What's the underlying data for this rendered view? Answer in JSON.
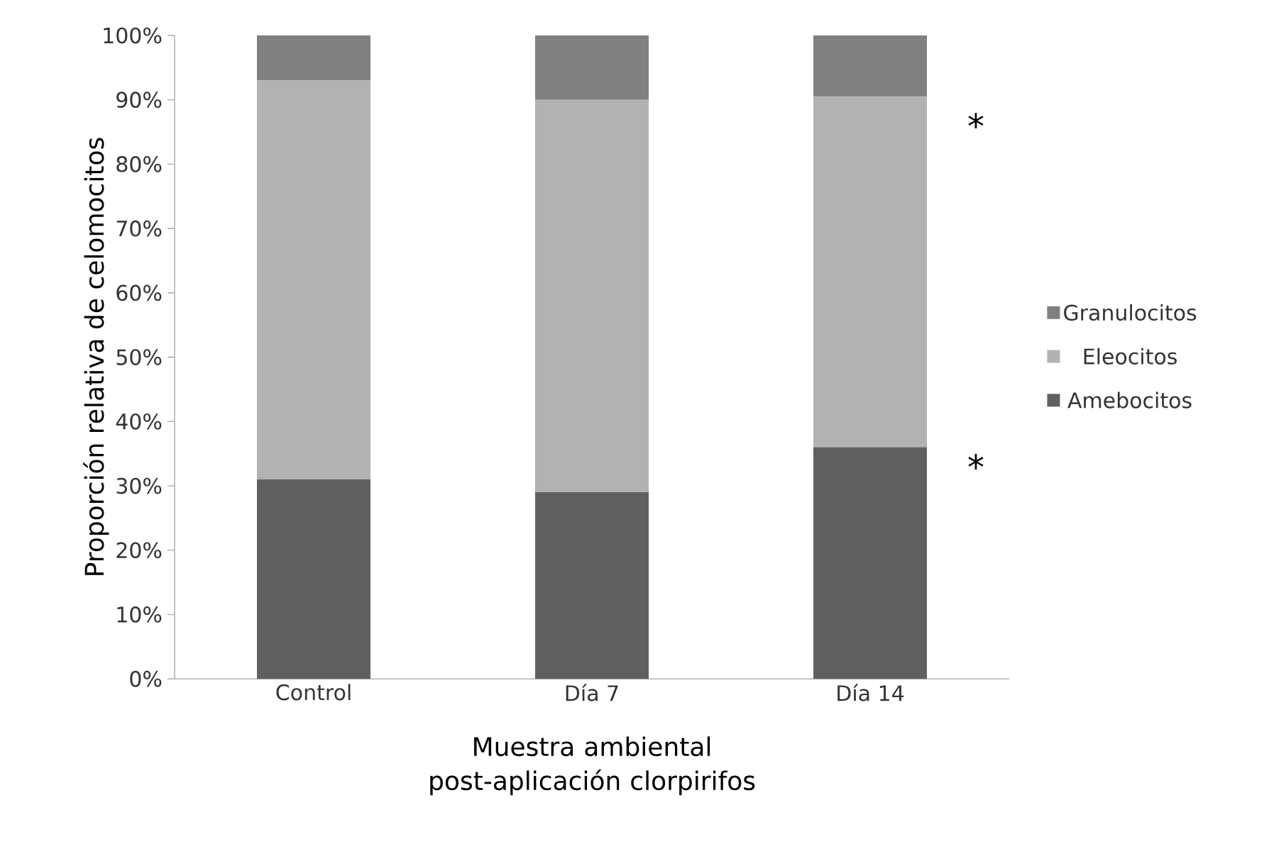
{
  "chart_data": {
    "type": "bar",
    "stacked": true,
    "categories": [
      "Control",
      "Día 7",
      "Día 14"
    ],
    "series": [
      {
        "name": "Amebocitos",
        "color": "#606060",
        "values": [
          31,
          29,
          36
        ]
      },
      {
        "name": "Eleocitos",
        "color": "#b2b2b2",
        "values": [
          62,
          61,
          54.5
        ]
      },
      {
        "name": "Granulocitos",
        "color": "#808080",
        "values": [
          7,
          10,
          9.5
        ]
      }
    ],
    "ylim": [
      0,
      100
    ],
    "yticks": [
      {
        "value": 0,
        "label": "0%"
      },
      {
        "value": 10,
        "label": "10%"
      },
      {
        "value": 20,
        "label": "20%"
      },
      {
        "value": 30,
        "label": "30%"
      },
      {
        "value": 40,
        "label": "40%"
      },
      {
        "value": 50,
        "label": "50%"
      },
      {
        "value": 60,
        "label": "60%"
      },
      {
        "value": 70,
        "label": "70%"
      },
      {
        "value": 80,
        "label": "80%"
      },
      {
        "value": 90,
        "label": "90%"
      },
      {
        "value": 100,
        "label": "100%"
      }
    ],
    "xlabel": "Muestra ambiental post-aplicación clorpirifos",
    "ylabel": "Proporción relativa de celomocitos",
    "legend": "right",
    "grid": false,
    "annotations": [
      "*",
      "*"
    ]
  }
}
